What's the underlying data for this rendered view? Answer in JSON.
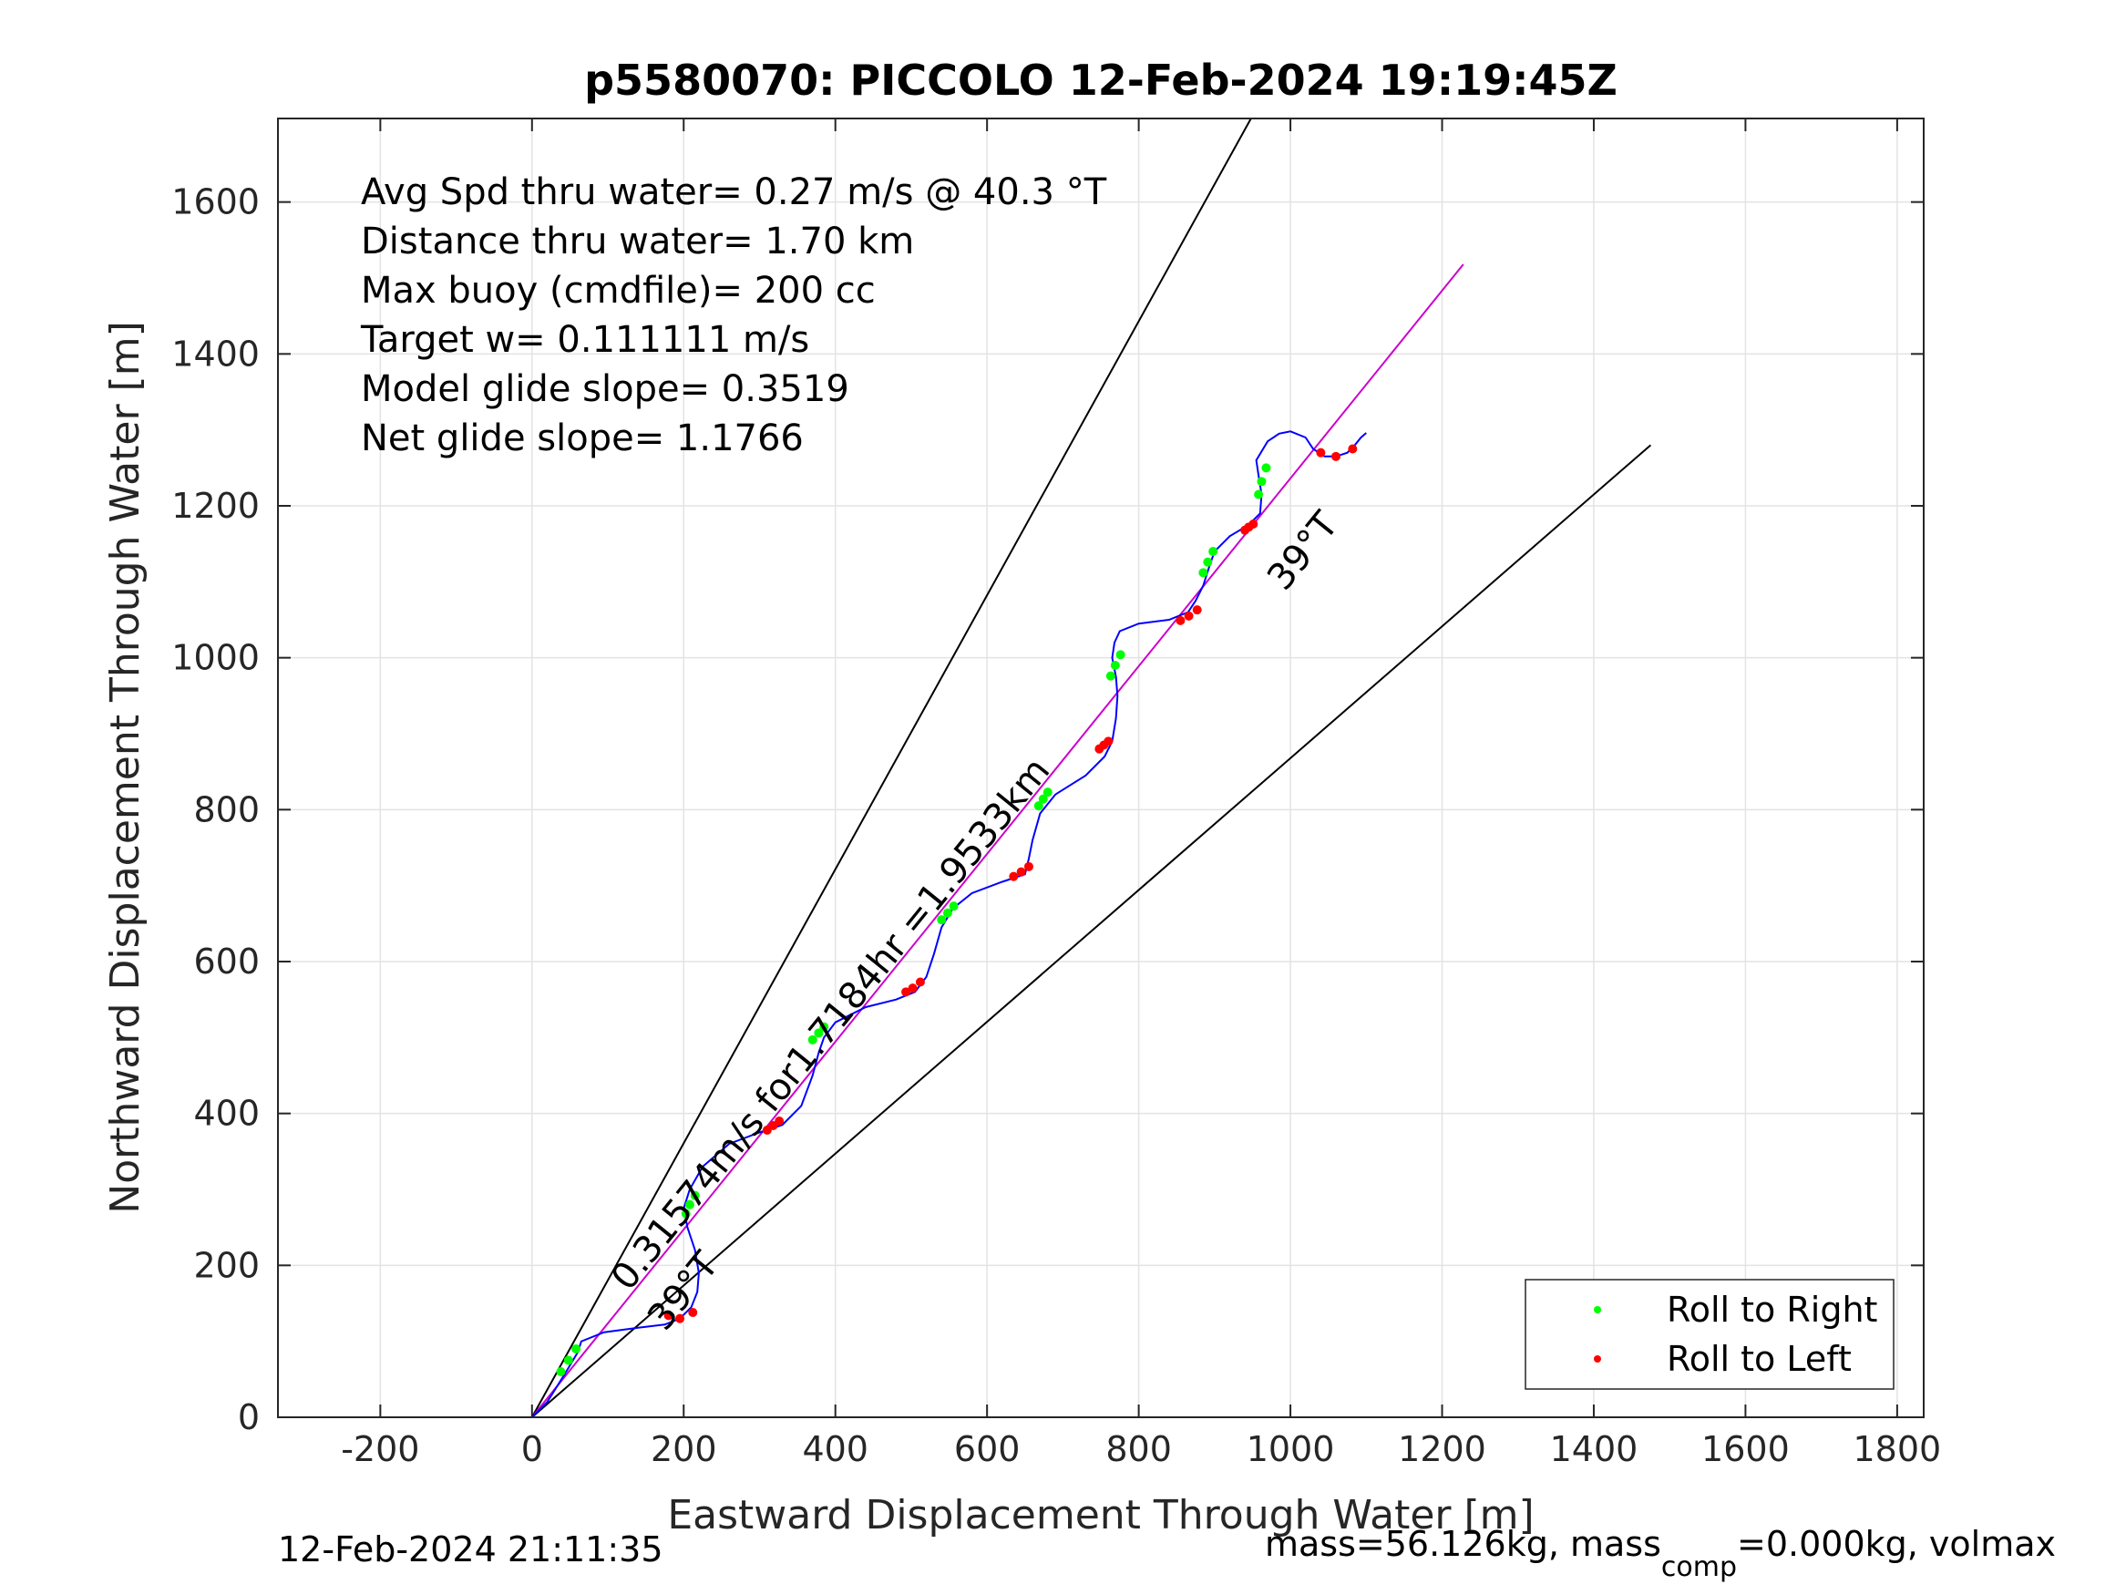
{
  "chart_data": {
    "type": "line",
    "title": "p5580070: PICCOLO 12-Feb-2024 19:19:45Z",
    "xlabel": "Eastward Displacement Through Water [m]",
    "ylabel": "Northward Displacement Through Water [m]",
    "xlim": [
      -335,
      1835
    ],
    "ylim": [
      0,
      1710
    ],
    "xticks": [
      -200,
      0,
      200,
      400,
      600,
      800,
      1000,
      1200,
      1400,
      1600,
      1800
    ],
    "yticks": [
      0,
      200,
      400,
      600,
      800,
      1000,
      1200,
      1400,
      1600
    ],
    "grid": true,
    "legend_position": "bottom-right",
    "stats": [
      "Avg Spd thru water=  0.27 m/s @  40.3 °T",
      "Distance thru water=  1.70 km",
      "Max buoy (cmdfile)= 200 cc",
      "Target w= 0.111111 m/s",
      "Model glide slope= 0.3519",
      "Net glide slope= 1.1766"
    ],
    "annotations": {
      "track_label": "0.31574m/s for1.7184hr =1.9533km",
      "heading_label_start": "39°T",
      "heading_label_end": "39°T"
    },
    "reference_lines": [
      {
        "name": "",
        "color": "#000000",
        "x": [
          0,
          948
        ],
        "y": [
          0,
          1710
        ]
      },
      {
        "name": "",
        "color": "#000000",
        "x": [
          0,
          1475
        ],
        "y": [
          0,
          1280
        ]
      },
      {
        "name": "",
        "color": "#cc00cc",
        "x": [
          0,
          1228
        ],
        "y": [
          0,
          1518
        ]
      }
    ],
    "track": {
      "color": "#0000ff",
      "x": [
        0,
        20,
        45,
        60,
        65,
        95,
        140,
        175,
        195,
        210,
        218,
        220,
        215,
        205,
        200,
        208,
        225,
        260,
        300,
        330,
        355,
        370,
        378,
        385,
        400,
        440,
        480,
        505,
        520,
        530,
        540,
        555,
        580,
        620,
        650,
        655,
        660,
        670,
        690,
        730,
        755,
        765,
        770,
        772,
        770,
        765,
        768,
        775,
        800,
        840,
        865,
        875,
        885,
        893,
        900,
        920,
        945,
        960,
        962,
        958,
        955,
        970,
        985,
        1000,
        1020,
        1030,
        1045,
        1060,
        1075,
        1085,
        1093,
        1100
      ],
      "y": [
        0,
        20,
        60,
        85,
        100,
        112,
        118,
        122,
        130,
        145,
        165,
        190,
        220,
        250,
        275,
        300,
        330,
        360,
        375,
        385,
        410,
        450,
        480,
        500,
        520,
        540,
        550,
        560,
        580,
        610,
        645,
        670,
        690,
        705,
        715,
        735,
        760,
        795,
        820,
        845,
        870,
        890,
        920,
        950,
        975,
        1000,
        1020,
        1035,
        1045,
        1050,
        1060,
        1075,
        1095,
        1120,
        1140,
        1160,
        1175,
        1190,
        1215,
        1240,
        1260,
        1285,
        1295,
        1298,
        1290,
        1275,
        1265,
        1265,
        1270,
        1280,
        1290,
        1296
      ]
    },
    "series": [
      {
        "name": "Roll to Right",
        "color": "#00ff00",
        "x": [
          38,
          48,
          58,
          203,
          208,
          215,
          370,
          378,
          385,
          540,
          548,
          556,
          668,
          674,
          680,
          763,
          769,
          776,
          885,
          891,
          898,
          958,
          962,
          968
        ],
        "y": [
          60,
          75,
          90,
          268,
          280,
          292,
          497,
          506,
          514,
          655,
          664,
          673,
          805,
          814,
          823,
          976,
          990,
          1004,
          1112,
          1126,
          1140,
          1215,
          1232,
          1250
        ]
      },
      {
        "name": "Roll to Left",
        "color": "#ff0000",
        "x": [
          180,
          195,
          212,
          310,
          318,
          326,
          493,
          502,
          512,
          635,
          645,
          655,
          748,
          754,
          760,
          855,
          866,
          877,
          940,
          945,
          951,
          1040,
          1060,
          1082
        ],
        "y": [
          134,
          130,
          138,
          378,
          384,
          390,
          560,
          565,
          573,
          712,
          718,
          725,
          880,
          885,
          890,
          1049,
          1055,
          1063,
          1168,
          1172,
          1176,
          1270,
          1265,
          1275
        ]
      }
    ]
  },
  "footer": {
    "timestamp": "12-Feb-2024 21:11:35",
    "mass_pre": "mass=56.126kg, mass",
    "mass_sub": "comp",
    "mass_post": "=0.000kg, volmax"
  }
}
